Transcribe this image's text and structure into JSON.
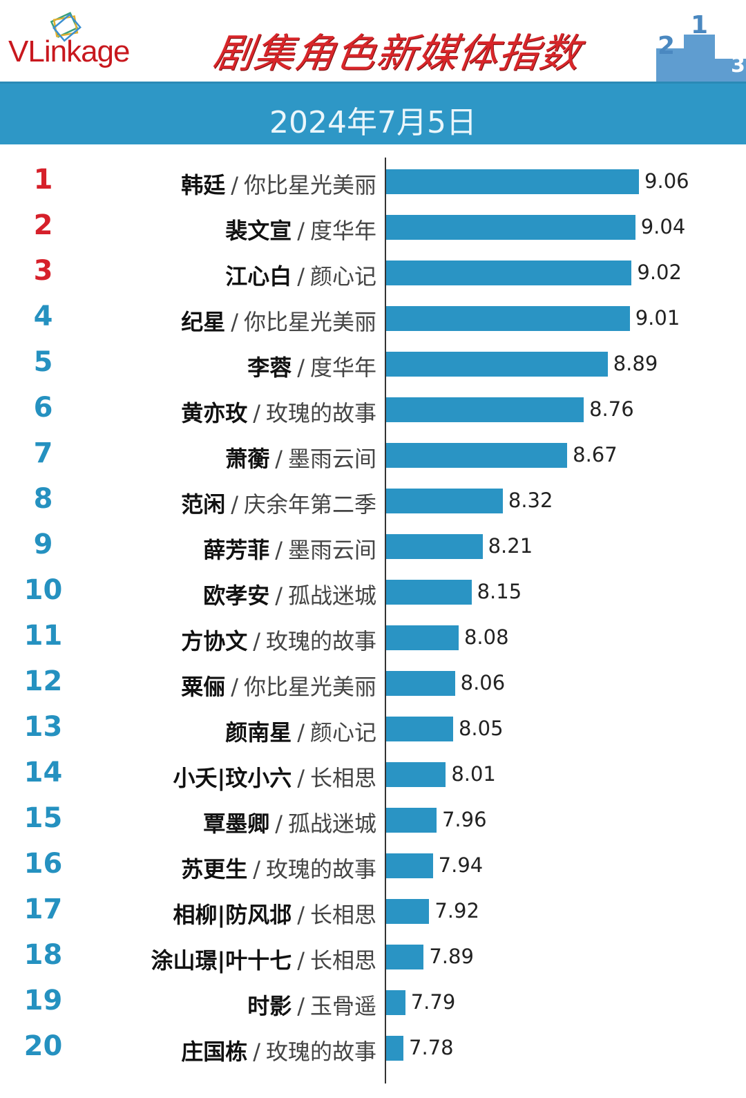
{
  "header": {
    "logo_text": "VLinkage",
    "title": "剧集角色新媒体指数",
    "date": "2024年7月5日",
    "podium_icon": "podium-1-2-3"
  },
  "colors": {
    "bar": "#2a94c4",
    "top_rank": "#d6202a",
    "rank": "#2591c0",
    "band": "#2e97c6",
    "title": "#d8262a"
  },
  "chart_data": {
    "type": "bar",
    "orientation": "horizontal",
    "title": "剧集角色新媒体指数",
    "subtitle": "2024年7月5日",
    "grid": false,
    "ranks": [
      "1",
      "2",
      "3",
      "4",
      "5",
      "6",
      "7",
      "8",
      "9",
      "10",
      "11",
      "12",
      "13",
      "14",
      "15",
      "16",
      "17",
      "18",
      "19",
      "20"
    ],
    "characters": [
      "韩廷",
      "裴文宣",
      "江心白",
      "纪星",
      "李蓉",
      "黄亦玫",
      "萧蘅",
      "范闲",
      "薛芳菲",
      "欧孝安",
      "方协文",
      "粟俪",
      "颜南星",
      "小夭|玟小六",
      "覃墨卿",
      "苏更生",
      "相柳|防风邶",
      "涂山璟|叶十七",
      "时影",
      "庄国栋"
    ],
    "shows": [
      "你比星光美丽",
      "度华年",
      "颜心记",
      "你比星光美丽",
      "度华年",
      "玫瑰的故事",
      "墨雨云间",
      "庆余年第二季",
      "墨雨云间",
      "孤战迷城",
      "玫瑰的故事",
      "你比星光美丽",
      "颜心记",
      "长相思",
      "孤战迷城",
      "玫瑰的故事",
      "长相思",
      "长相思",
      "玉骨遥",
      "玫瑰的故事"
    ],
    "values": [
      9.06,
      9.04,
      9.02,
      9.01,
      8.89,
      8.76,
      8.67,
      8.32,
      8.21,
      8.15,
      8.08,
      8.06,
      8.05,
      8.01,
      7.96,
      7.94,
      7.92,
      7.89,
      7.79,
      7.78
    ],
    "value_labels": [
      "9.06",
      "9.04",
      "9.02",
      "9.01",
      "8.89",
      "8.76",
      "8.67",
      "8.32",
      "8.21",
      "8.15",
      "8.08",
      "8.06",
      "8.05",
      "8.01",
      "7.96",
      "7.94",
      "7.92",
      "7.89",
      "7.79",
      "7.78"
    ],
    "separator": "/"
  }
}
